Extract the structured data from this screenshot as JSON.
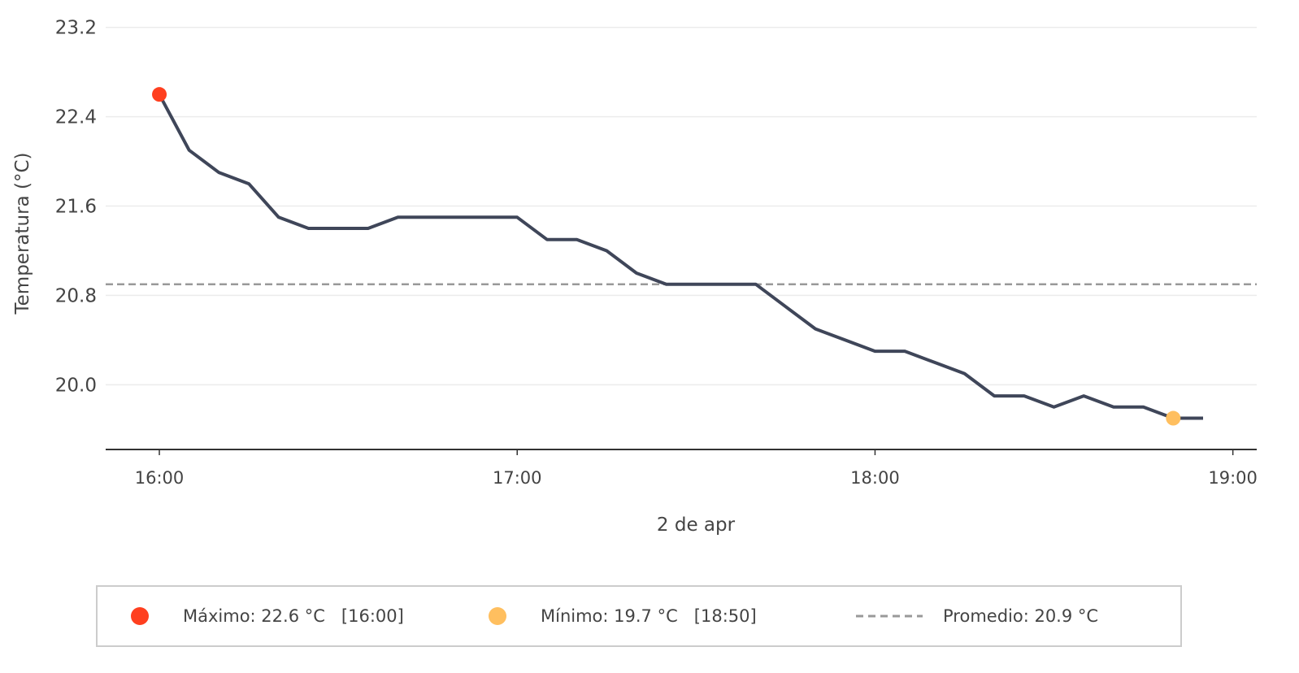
{
  "chart_data": {
    "type": "line",
    "xlabel": "2 de apr",
    "ylabel": "Temperatura (°C)",
    "ylim": [
      19.42,
      23.3
    ],
    "xlim": [
      "15:51",
      "19:04"
    ],
    "yticks": [
      20.0,
      20.8,
      21.6,
      22.4,
      23.2
    ],
    "yticklabels": [
      "20.0",
      "20.8",
      "21.6",
      "22.4",
      "23.2"
    ],
    "xticks": [
      "16:00",
      "17:00",
      "18:00",
      "19:00"
    ],
    "xticklabels": [
      "16:00",
      "17:00",
      "18:00",
      "19:00"
    ],
    "grid": "horizontal",
    "legend": "bottom",
    "series": [
      {
        "x": [
          "16:00",
          "16:05",
          "16:10",
          "16:15",
          "16:20",
          "16:25",
          "16:30",
          "16:35",
          "16:40",
          "16:45",
          "16:50",
          "16:55",
          "17:00",
          "17:05",
          "17:10",
          "17:15",
          "17:20",
          "17:25",
          "17:30",
          "17:35",
          "17:40",
          "17:45",
          "17:50",
          "17:55",
          "18:00",
          "18:05",
          "18:10",
          "18:15",
          "18:20",
          "18:25",
          "18:30",
          "18:35",
          "18:40",
          "18:45",
          "18:50",
          "18:55"
        ],
        "values": [
          22.6,
          22.1,
          21.9,
          21.8,
          21.5,
          21.4,
          21.4,
          21.4,
          21.5,
          21.5,
          21.5,
          21.5,
          21.5,
          21.3,
          21.3,
          21.2,
          21.0,
          20.9,
          20.9,
          20.9,
          20.9,
          20.7,
          20.5,
          20.4,
          20.3,
          20.3,
          20.2,
          20.1,
          19.9,
          19.9,
          19.8,
          19.9,
          19.8,
          19.8,
          19.7,
          19.7
        ],
        "color": "#3f4659"
      }
    ],
    "max_point": {
      "x": "16:00",
      "y": 22.6,
      "color": "#ff3f1f"
    },
    "min_point": {
      "x": "18:50",
      "y": 19.7,
      "color": "#ffbf5f"
    },
    "average": {
      "y": 20.9,
      "color": "#999999"
    },
    "legend_entries": [
      {
        "marker": "dot",
        "color": "#ff3f1f",
        "label": "Máximo: 22.6 °C   [16:00]"
      },
      {
        "marker": "dot",
        "color": "#ffbf5f",
        "label": "Mínimo: 19.7 °C   [18:50]"
      },
      {
        "marker": "dashed-line",
        "color": "#999999",
        "label": "Promedio: 20.9 °C"
      }
    ]
  }
}
